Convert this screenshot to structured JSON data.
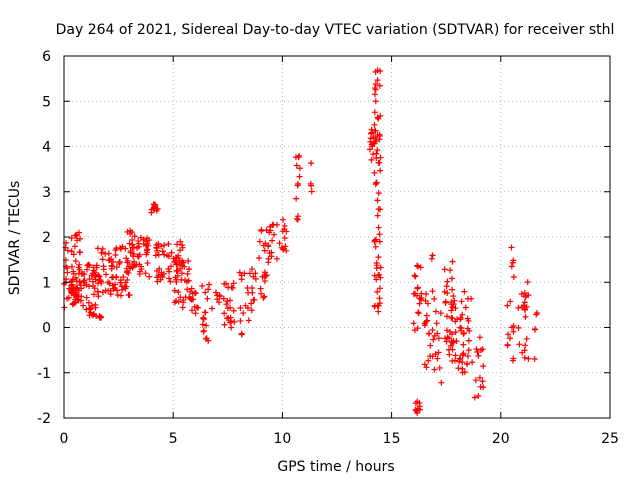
{
  "chart_data": {
    "type": "scatter",
    "title": "Day 264 of 2021, Sidereal Day-to-day VTEC variation (SDTVAR) for receiver sthl",
    "xlabel": "GPS time / hours",
    "ylabel": "SDTVAR / TECUs",
    "xlim": [
      0,
      25
    ],
    "ylim": [
      -2,
      6
    ],
    "xticks": [
      0,
      5,
      10,
      15,
      20,
      25
    ],
    "yticks": [
      -2,
      -1,
      0,
      1,
      2,
      3,
      4,
      5,
      6
    ],
    "grid": true,
    "marker": "+",
    "color": "#ff0000",
    "clusters": [
      {
        "x": [
          0.0,
          0.8
        ],
        "y": [
          0.4,
          2.1
        ],
        "n": 40
      },
      {
        "x": [
          0.3,
          1.0
        ],
        "y": [
          0.4,
          1.2
        ],
        "n": 40
      },
      {
        "x": [
          1.0,
          1.7
        ],
        "y": [
          0.2,
          1.4
        ],
        "n": 45
      },
      {
        "x": [
          1.5,
          3.0
        ],
        "y": [
          0.7,
          1.8
        ],
        "n": 70
      },
      {
        "x": [
          2.9,
          3.4
        ],
        "y": [
          1.2,
          2.15
        ],
        "n": 25
      },
      {
        "x": [
          3.4,
          4.0
        ],
        "y": [
          1.1,
          2.0
        ],
        "n": 25
      },
      {
        "x": [
          4.0,
          4.3
        ],
        "y": [
          2.5,
          2.75
        ],
        "n": 12
      },
      {
        "x": [
          4.2,
          5.5
        ],
        "y": [
          1.0,
          1.9
        ],
        "n": 45
      },
      {
        "x": [
          5.0,
          5.8
        ],
        "y": [
          0.4,
          1.6
        ],
        "n": 35
      },
      {
        "x": [
          5.8,
          6.2
        ],
        "y": [
          0.2,
          0.9
        ],
        "n": 12
      },
      {
        "x": [
          6.3,
          6.8
        ],
        "y": [
          -0.3,
          1.0
        ],
        "n": 18
      },
      {
        "x": [
          6.9,
          7.2
        ],
        "y": [
          0.1,
          0.8
        ],
        "n": 6
      },
      {
        "x": [
          7.3,
          7.8
        ],
        "y": [
          -0.1,
          1.1
        ],
        "n": 22
      },
      {
        "x": [
          8.0,
          8.4
        ],
        "y": [
          -0.2,
          1.3
        ],
        "n": 10
      },
      {
        "x": [
          8.4,
          8.8
        ],
        "y": [
          0.0,
          1.3
        ],
        "n": 15
      },
      {
        "x": [
          8.9,
          9.3
        ],
        "y": [
          0.6,
          2.4
        ],
        "n": 18
      },
      {
        "x": [
          9.3,
          9.8
        ],
        "y": [
          1.4,
          2.3
        ],
        "n": 16
      },
      {
        "x": [
          9.8,
          10.2
        ],
        "y": [
          1.6,
          2.4
        ],
        "n": 12
      },
      {
        "x": [
          10.6,
          10.8
        ],
        "y": [
          2.3,
          3.8
        ],
        "n": 12
      },
      {
        "x": [
          11.3,
          11.4
        ],
        "y": [
          2.9,
          3.9
        ],
        "n": 4
      },
      {
        "x": [
          14.0,
          14.3
        ],
        "y": [
          3.7,
          4.5
        ],
        "n": 20
      },
      {
        "x": [
          14.2,
          14.5
        ],
        "y": [
          0.2,
          5.7
        ],
        "n": 60
      },
      {
        "x": [
          16.0,
          16.3
        ],
        "y": [
          -1.9,
          -1.6
        ],
        "n": 10
      },
      {
        "x": [
          16.0,
          16.4
        ],
        "y": [
          -0.5,
          1.4
        ],
        "n": 20
      },
      {
        "x": [
          16.5,
          17.0
        ],
        "y": [
          -1.0,
          0.9
        ],
        "n": 22
      },
      {
        "x": [
          16.8,
          17.0
        ],
        "y": [
          1.5,
          1.6
        ],
        "n": 3
      },
      {
        "x": [
          17.0,
          17.3
        ],
        "y": [
          -1.3,
          0.4
        ],
        "n": 10
      },
      {
        "x": [
          17.4,
          17.8
        ],
        "y": [
          -0.6,
          1.6
        ],
        "n": 22
      },
      {
        "x": [
          17.7,
          18.3
        ],
        "y": [
          -1.1,
          0.8
        ],
        "n": 32
      },
      {
        "x": [
          18.2,
          18.7
        ],
        "y": [
          -1.0,
          0.8
        ],
        "n": 25
      },
      {
        "x": [
          18.8,
          19.2
        ],
        "y": [
          -1.6,
          -0.2
        ],
        "n": 14
      },
      {
        "x": [
          20.3,
          20.6
        ],
        "y": [
          -0.8,
          1.9
        ],
        "n": 16
      },
      {
        "x": [
          20.8,
          21.3
        ],
        "y": [
          -0.8,
          1.1
        ],
        "n": 22
      },
      {
        "x": [
          21.5,
          21.7
        ],
        "y": [
          -1.1,
          0.4
        ],
        "n": 5
      }
    ]
  }
}
